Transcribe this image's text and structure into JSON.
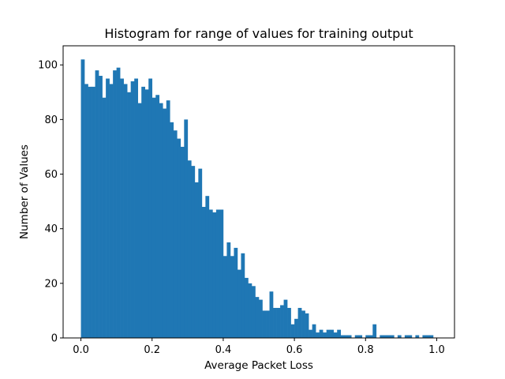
{
  "chart_data": {
    "type": "bar",
    "title": "Histogram for range of values for training output",
    "xlabel": "Average Packet Loss",
    "ylabel": "Number of Values",
    "xlim": [
      -0.05,
      1.05
    ],
    "ylim": [
      0,
      107
    ],
    "bin_start": 0.0,
    "bin_width": 0.01,
    "x_ticks": [
      0.0,
      0.2,
      0.4,
      0.6,
      0.8,
      1.0
    ],
    "x_tick_labels": [
      "0.0",
      "0.2",
      "0.4",
      "0.6",
      "0.8",
      "1.0"
    ],
    "y_ticks": [
      0,
      20,
      40,
      60,
      80,
      100
    ],
    "y_tick_labels": [
      "0",
      "20",
      "40",
      "60",
      "80",
      "100"
    ],
    "grid": false,
    "legend": "none",
    "bar_color": "#1f77b4",
    "values": [
      102,
      93,
      92,
      92,
      98,
      96,
      88,
      95,
      93,
      98,
      99,
      95,
      93,
      90,
      94,
      95,
      86,
      92,
      91,
      95,
      88,
      89,
      86,
      84,
      87,
      79,
      76,
      73,
      70,
      80,
      65,
      63,
      57,
      62,
      48,
      52,
      47,
      46,
      47,
      47,
      30,
      35,
      30,
      33,
      25,
      31,
      22,
      20,
      19,
      15,
      14,
      10,
      10,
      17,
      11,
      11,
      12,
      14,
      11,
      5,
      7,
      11,
      10,
      9,
      3,
      5,
      2,
      3,
      2,
      3,
      3,
      2,
      3,
      1,
      1,
      1,
      0,
      1,
      1,
      0,
      1,
      1,
      5,
      0,
      1,
      1,
      1,
      1,
      0,
      1,
      0,
      1,
      1,
      0,
      1,
      0,
      1,
      1,
      1,
      0,
      0
    ]
  }
}
